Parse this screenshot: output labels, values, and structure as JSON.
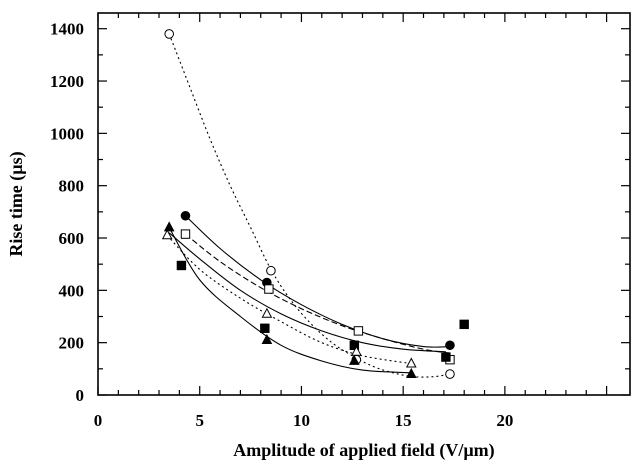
{
  "chart_data": {
    "type": "scatter",
    "title": "",
    "xlabel": "Amplitude of applied field (V/µm)",
    "ylabel": "Rise time (µs)",
    "xlim": [
      0,
      20
    ],
    "ylim": [
      0,
      1400
    ],
    "xticks": [
      0,
      5,
      10,
      15,
      20
    ],
    "yticks": [
      0,
      200,
      400,
      600,
      800,
      1000,
      1200,
      1400
    ],
    "grid": false,
    "legend": "none",
    "series": [
      {
        "marker": "open-circle",
        "line": "dotted",
        "x": [
          3.5,
          8.5,
          12.7,
          17.3
        ],
        "y": [
          1380,
          475,
          135,
          80
        ],
        "fit_x": [
          3.5,
          4.5,
          5.5,
          6.5,
          7.5,
          8.5,
          9.5,
          10.5,
          11.5,
          12.5,
          13.5,
          14.5,
          15.5,
          16.5,
          17.3
        ],
        "fit_y": [
          1380,
          1180,
          980,
          800,
          640,
          480,
          360,
          270,
          200,
          150,
          110,
          85,
          70,
          70,
          80
        ]
      },
      {
        "marker": "filled-circle",
        "line": "solid",
        "x": [
          4.3,
          8.3,
          17.3
        ],
        "y": [
          685,
          430,
          190
        ],
        "fit_x": [
          4.3,
          6,
          8,
          10,
          12,
          14,
          16,
          17.3
        ],
        "fit_y": [
          685,
          560,
          440,
          345,
          270,
          215,
          185,
          185
        ]
      },
      {
        "marker": "open-square",
        "line": "dashed",
        "x": [
          4.3,
          8.4,
          12.8,
          17.3
        ],
        "y": [
          615,
          405,
          245,
          135
        ],
        "fit_x": [
          4.3,
          6,
          8,
          10,
          12,
          14,
          16,
          17.3
        ],
        "fit_y": [
          615,
          510,
          410,
          330,
          265,
          215,
          175,
          160
        ]
      },
      {
        "marker": "filled-square",
        "line": "solid",
        "x": [
          4.1,
          8.2,
          12.6,
          17.1,
          18.0
        ],
        "y": [
          495,
          255,
          190,
          145,
          270
        ],
        "fit_x": [
          3.5,
          5,
          7,
          9,
          11,
          13,
          15,
          17.1
        ],
        "fit_y": [
          620,
          520,
          400,
          310,
          245,
          200,
          175,
          165
        ]
      },
      {
        "marker": "open-triangle",
        "line": "dotted",
        "x": [
          3.4,
          8.3,
          12.7,
          15.4
        ],
        "y": [
          610,
          310,
          165,
          120
        ],
        "fit_x": [
          3.4,
          5,
          7,
          9,
          11,
          13,
          15.4
        ],
        "fit_y": [
          610,
          480,
          370,
          280,
          200,
          150,
          120
        ]
      },
      {
        "marker": "filled-triangle",
        "line": "solid",
        "x": [
          3.5,
          8.3,
          12.6,
          15.4
        ],
        "y": [
          640,
          210,
          130,
          80
        ],
        "fit_x": [
          3.5,
          5,
          7,
          9,
          11,
          13,
          15.4
        ],
        "fit_y": [
          640,
          440,
          300,
          190,
          130,
          95,
          85
        ]
      }
    ]
  }
}
